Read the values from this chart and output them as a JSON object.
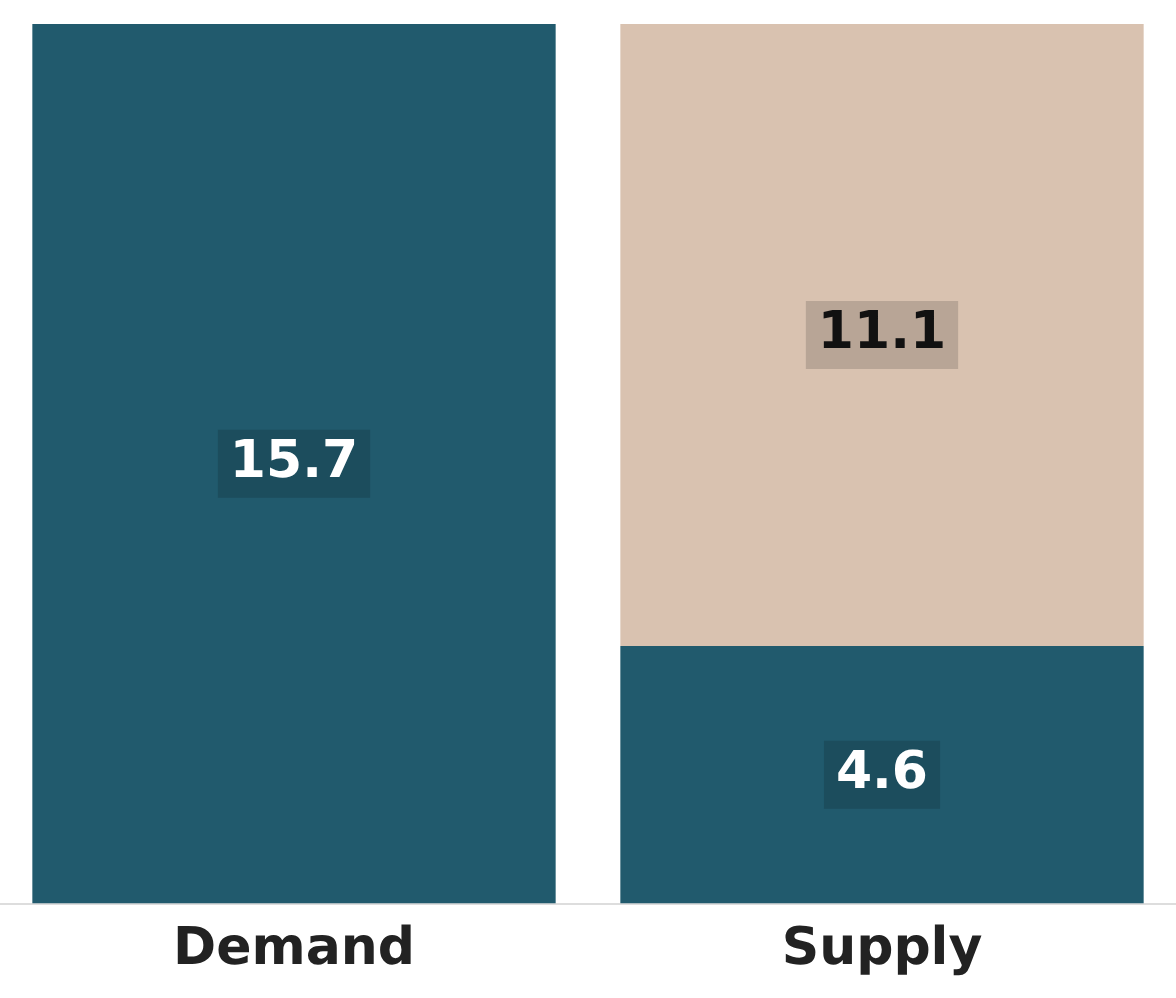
{
  "chart_data": {
    "type": "bar",
    "categories": [
      "Demand",
      "Supply"
    ],
    "stacked": true,
    "data_labels": true,
    "ylim": [
      0,
      15.7
    ],
    "tick_labels": "x",
    "grid": false,
    "legend": false,
    "series": [
      {
        "color": "#215a6d",
        "values": [
          15.7,
          4.6
        ]
      },
      {
        "color": "#d9c2b0",
        "values": [
          null,
          11.1
        ]
      }
    ]
  }
}
